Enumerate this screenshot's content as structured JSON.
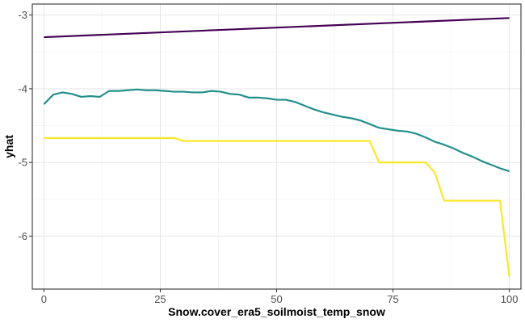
{
  "chart_data": {
    "type": "line",
    "title": "",
    "xlabel": "Snow.cover_era5_soilmoist_temp_snow",
    "ylabel": "yhat",
    "xlim": [
      -2.5,
      102.5
    ],
    "ylim": [
      -6.72,
      -2.85
    ],
    "x_ticks": [
      0,
      25,
      50,
      75,
      100
    ],
    "x_tick_labels": [
      "0",
      "25",
      "50",
      "75",
      "100"
    ],
    "y_ticks": [
      -3,
      -4,
      -5,
      -6
    ],
    "y_tick_labels": [
      "-3",
      "-4",
      "-5",
      "-6"
    ],
    "grid": true,
    "legend": "none",
    "series": [
      {
        "color": "#440154",
        "x": [
          0,
          100
        ],
        "y": [
          -3.3,
          -3.04
        ]
      },
      {
        "color": "#21908C",
        "x": [
          0,
          2,
          4,
          6,
          8,
          10,
          12,
          14,
          16,
          18,
          20,
          22,
          24,
          26,
          28,
          30,
          32,
          34,
          36,
          38,
          40,
          42,
          44,
          46,
          48,
          50,
          52,
          54,
          56,
          58,
          60,
          62,
          64,
          66,
          68,
          70,
          72,
          74,
          76,
          78,
          80,
          82,
          84,
          86,
          88,
          90,
          92,
          94,
          96,
          98,
          100
        ],
        "y": [
          -4.21,
          -4.08,
          -4.05,
          -4.07,
          -4.11,
          -4.1,
          -4.11,
          -4.03,
          -4.03,
          -4.02,
          -4.01,
          -4.02,
          -4.02,
          -4.03,
          -4.04,
          -4.04,
          -4.05,
          -4.05,
          -4.03,
          -4.04,
          -4.07,
          -4.08,
          -4.12,
          -4.12,
          -4.13,
          -4.15,
          -4.15,
          -4.18,
          -4.23,
          -4.28,
          -4.32,
          -4.35,
          -4.38,
          -4.4,
          -4.43,
          -4.48,
          -4.53,
          -4.55,
          -4.57,
          -4.58,
          -4.61,
          -4.66,
          -4.72,
          -4.76,
          -4.81,
          -4.87,
          -4.92,
          -4.98,
          -5.03,
          -5.08,
          -5.12
        ]
      },
      {
        "color": "#FDE725",
        "x": [
          0,
          28,
          30,
          70,
          72,
          82,
          84,
          86,
          98,
          100
        ],
        "y": [
          -4.67,
          -4.67,
          -4.71,
          -4.71,
          -5.0,
          -5.0,
          -5.14,
          -5.52,
          -5.52,
          -6.55
        ]
      }
    ]
  }
}
